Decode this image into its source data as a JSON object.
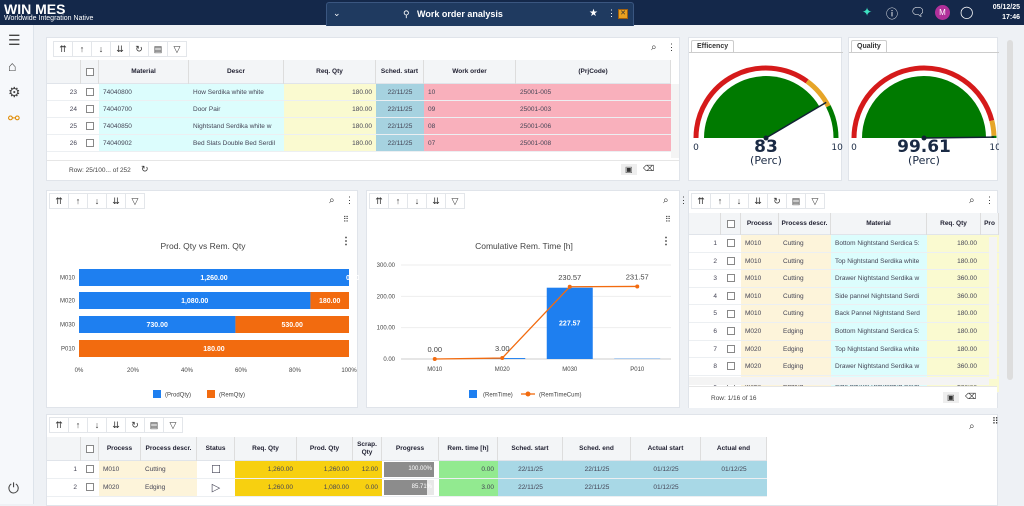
{
  "app": {
    "name": "WIN MES",
    "subtitle": "Worldwide Integration Native",
    "title": "Work order analysis",
    "date": "05/12/25",
    "time": "17:46",
    "avatar": "M"
  },
  "colors": {
    "topbar": "#14284a",
    "prod": "#1e7ff0",
    "rem": "#f26b0f",
    "gauge_green": "#007a00",
    "gauge_red": "#d51a1a",
    "gauge_amber": "#e6a528"
  },
  "sidebar": {
    "items": [
      {
        "icon": "menu-icon"
      },
      {
        "icon": "home-icon"
      },
      {
        "icon": "settings-icon"
      },
      {
        "icon": "workflow-icon"
      },
      {
        "icon": "power-icon"
      }
    ]
  },
  "toolbar_icons": [
    "first-icon",
    "up-icon",
    "down-icon",
    "last-icon",
    "refresh-icon",
    "columns-icon",
    "filter-icon"
  ],
  "work_orders": {
    "columns": [
      "",
      "",
      "Material",
      "Descr",
      "Req. Qty",
      "Sched. start",
      "Work order",
      "(PrjCode)"
    ],
    "rows": [
      [
        "23",
        "",
        "74040800",
        "How Serdika white white",
        "180.00",
        "22/11/25",
        "10",
        "25001-005"
      ],
      [
        "24",
        "",
        "74040700",
        "Door Pair",
        "180.00",
        "22/11/25",
        "09",
        "25001-003"
      ],
      [
        "25",
        "",
        "74040850",
        "Nightstand Serdika white w",
        "180.00",
        "22/11/25",
        "08",
        "25001-006"
      ],
      [
        "26",
        "",
        "74040902",
        "Bed Slats Double Bed Serdil",
        "180.00",
        "22/11/25",
        "07",
        "25001-008"
      ]
    ],
    "footer": "Row: 25/100... of 252"
  },
  "gauges": [
    {
      "label": "Efficency",
      "value": 83,
      "display": "83",
      "unit": "(Perc)",
      "min": "0",
      "max": "100",
      "bands": [
        70,
        85
      ]
    },
    {
      "label": "Quality",
      "value": 99.61,
      "display": "99.61",
      "unit": "(Perc)",
      "min": "0",
      "max": "100",
      "bands": [
        92,
        99
      ]
    }
  ],
  "chart_data": [
    {
      "type": "bar",
      "stacked": "percent",
      "orientation": "horizontal",
      "title": "Prod. Qty vs Rem. Qty",
      "categories": [
        "M010",
        "M020",
        "M030",
        "P010"
      ],
      "series": [
        {
          "name": "(ProdQty)",
          "values": [
            1260,
            1080,
            730,
            0
          ],
          "labels": [
            "1,260.00",
            "1,080.00",
            "730.00",
            "0.00"
          ]
        },
        {
          "name": "(RemQty)",
          "values": [
            0,
            180,
            530,
            180
          ],
          "labels": [
            "0.00",
            "180.00",
            "530.00",
            "180.00"
          ]
        }
      ],
      "xticks": [
        "0%",
        "20%",
        "40%",
        "60%",
        "80%",
        "100%"
      ],
      "legend": "bottom"
    },
    {
      "type": "bar+line",
      "title": "Comulative Rem. Time [h]",
      "categories": [
        "M010",
        "M020",
        "M030",
        "P010"
      ],
      "ylim": [
        0,
        300
      ],
      "yticks": [
        "0.00",
        "100.00",
        "200.00",
        "300.00"
      ],
      "series": [
        {
          "name": "(RemTime)",
          "type": "bar",
          "values": [
            0,
            3,
            227.57,
            1
          ],
          "labels": [
            "",
            "",
            "227.57",
            ""
          ]
        },
        {
          "name": "(RemTimeCum)",
          "type": "line",
          "values": [
            0,
            3,
            230.57,
            231.57
          ],
          "labels": [
            "0.00",
            "3.00",
            "230.57",
            "231.57"
          ]
        }
      ],
      "legend": "bottom"
    }
  ],
  "operations": {
    "columns": [
      "",
      "",
      "Process",
      "Process descr.",
      "Material",
      "Req. Qty",
      "Pro"
    ],
    "rows": [
      [
        "1",
        "",
        "M010",
        "Cutting",
        "Bottom Nightstand Serdica 5:",
        "180.00"
      ],
      [
        "2",
        "",
        "M010",
        "Cutting",
        "Top Nightstand Serdika white",
        "180.00"
      ],
      [
        "3",
        "",
        "M010",
        "Cutting",
        "Drawer Nightstand Serdika w",
        "360.00"
      ],
      [
        "4",
        "",
        "M010",
        "Cutting",
        "Side pannel Nightstand Serdi",
        "360.00"
      ],
      [
        "5",
        "",
        "M010",
        "Cutting",
        "Back Pannel Nightstand Serd",
        "180.00"
      ],
      [
        "6",
        "",
        "M020",
        "Edging",
        "Bottom Nightstand Serdica 5:",
        "180.00"
      ],
      [
        "7",
        "",
        "M020",
        "Edging",
        "Top Nightstand Serdika white",
        "180.00"
      ],
      [
        "8",
        "",
        "M020",
        "Edging",
        "Drawer Nightstand Serdika w",
        "360.00"
      ],
      [
        "9",
        "",
        "M020",
        "Edging",
        "Side pannel Nightstand Serdi",
        "360.00"
      ]
    ],
    "footer": "Row: 1/16 of 16"
  },
  "processes": {
    "columns": [
      "",
      "",
      "Process",
      "Process descr.",
      "Status",
      "Req. Qty",
      "Prod. Qty",
      "Scrap. Qty",
      "Progress",
      "Rem. time [h]",
      "Sched. start",
      "Sched. end",
      "Actual start",
      "Actual end"
    ],
    "rows": [
      [
        "1",
        "",
        "M010",
        "Cutting",
        "stop",
        "1,260.00",
        "1,260.00",
        "12.00",
        "100.00%",
        "0.00",
        "22/11/25",
        "22/11/25",
        "01/12/25",
        "01/12/25"
      ],
      [
        "2",
        "",
        "M020",
        "Edging",
        "play",
        "1,260.00",
        "1,080.00",
        "0.00",
        "85.71%",
        "3.00",
        "22/11/25",
        "22/11/25",
        "01/12/25",
        ""
      ]
    ],
    "progress": [
      100,
      85.71
    ]
  }
}
